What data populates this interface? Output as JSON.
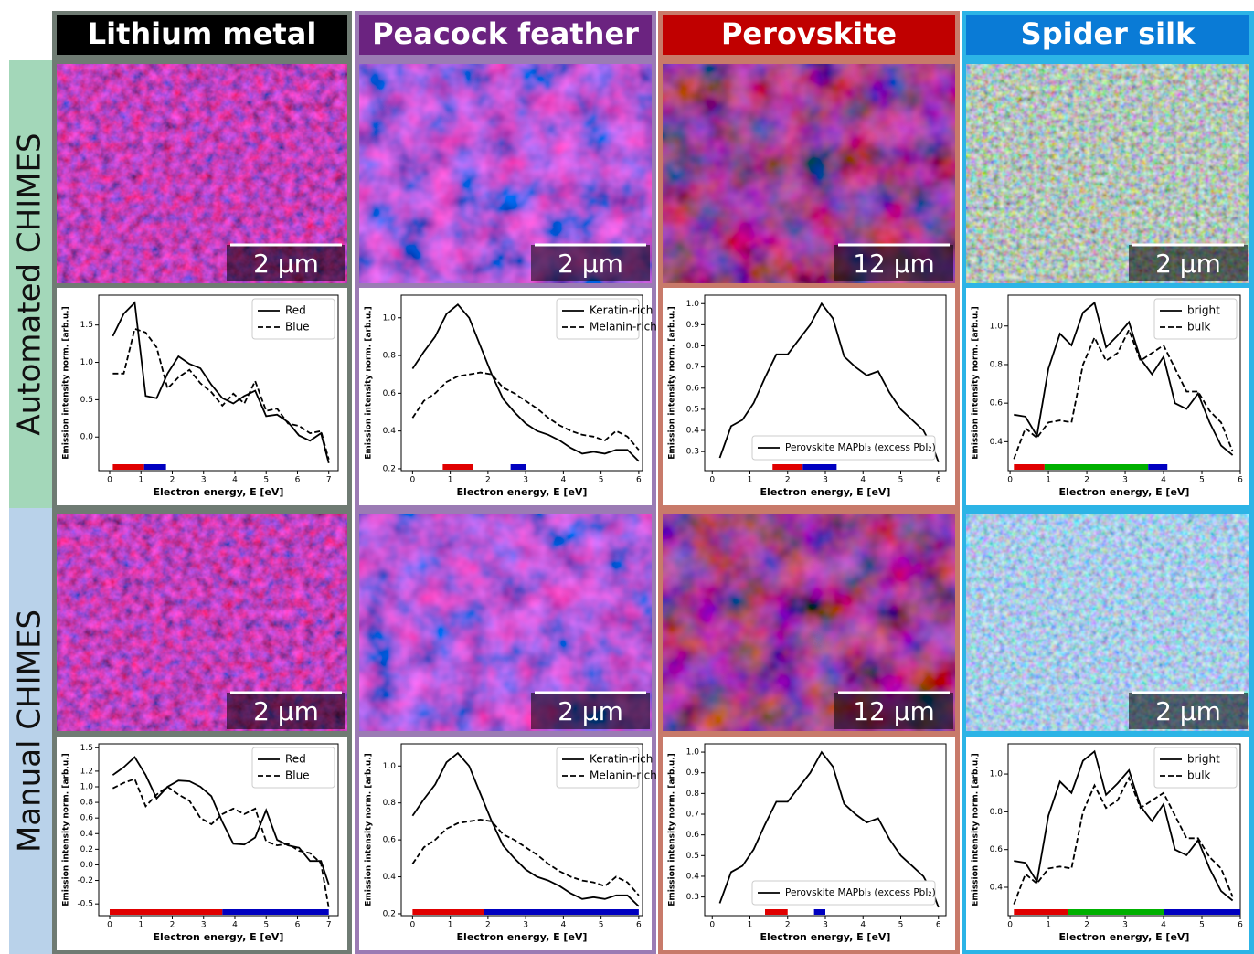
{
  "columns": [
    {
      "title": "Lithium metal"
    },
    {
      "title": "Peacock feather"
    },
    {
      "title": "Perovskite"
    },
    {
      "title": "Spider silk"
    }
  ],
  "rows": [
    "Automated CHIMES",
    "Manual CHIMES"
  ],
  "scale_bars": [
    [
      "2 µm",
      "2 µm",
      "12 µm",
      "2 µm"
    ],
    [
      "2 µm",
      "2 µm",
      "12 µm",
      "2 µm"
    ]
  ],
  "chart_data": [
    {
      "type": "line",
      "x_label": "Electron energy, E [eV]",
      "y_label": "Emission intensity norm. [arb.u.]",
      "legend": "upper right",
      "x": [
        0.1,
        0.45,
        0.8,
        1.15,
        1.5,
        1.85,
        2.2,
        2.55,
        2.9,
        3.25,
        3.6,
        3.95,
        4.3,
        4.65,
        5.0,
        5.35,
        5.7,
        6.05,
        6.4,
        6.75,
        7.0
      ],
      "series": [
        {
          "name": "Red",
          "color": "#000000",
          "linestyle": "solid",
          "values": [
            1.35,
            1.65,
            1.8,
            0.55,
            0.52,
            0.85,
            1.08,
            0.98,
            0.92,
            0.7,
            0.52,
            0.45,
            0.55,
            0.62,
            0.28,
            0.3,
            0.2,
            0.02,
            -0.05,
            0.05,
            -0.35
          ]
        },
        {
          "name": "Blue",
          "color": "#000000",
          "linestyle": "dashed",
          "values": [
            0.85,
            0.85,
            1.45,
            1.4,
            1.2,
            0.65,
            0.8,
            0.9,
            0.72,
            0.6,
            0.42,
            0.58,
            0.45,
            0.75,
            0.35,
            0.38,
            0.18,
            0.15,
            0.05,
            0.08,
            -0.3
          ]
        }
      ],
      "bands": [
        {
          "color": "#e00000",
          "range": [
            0.1,
            1.1
          ]
        },
        {
          "color": "#0000c0",
          "range": [
            1.1,
            1.8
          ]
        }
      ],
      "xlim": [
        -0.35,
        7.3
      ],
      "xticks": [
        0,
        1,
        2,
        3,
        4,
        5,
        6,
        7
      ],
      "ylim": [
        -0.45,
        1.9
      ],
      "yticks": [
        {
          "value": 0,
          "label": "0.0"
        },
        0.5,
        {
          "value": 1,
          "label": "1.0"
        },
        1.5
      ]
    },
    {
      "type": "line",
      "x_label": "Electron energy, E [eV]",
      "y_label": "Emission intensity norm. [arb.u.]",
      "legend": "upper right",
      "x": [
        0,
        0.3,
        0.6,
        0.9,
        1.2,
        1.5,
        1.8,
        2.1,
        2.4,
        2.7,
        3.0,
        3.3,
        3.6,
        3.9,
        4.2,
        4.5,
        4.8,
        5.1,
        5.4,
        5.7,
        6.0
      ],
      "series": [
        {
          "name": "Keratin-rich",
          "color": "#000000",
          "linestyle": "solid",
          "values": [
            0.73,
            0.82,
            0.9,
            1.02,
            1.07,
            1.0,
            0.85,
            0.7,
            0.57,
            0.5,
            0.44,
            0.4,
            0.38,
            0.35,
            0.31,
            0.28,
            0.29,
            0.28,
            0.3,
            0.3,
            0.24
          ]
        },
        {
          "name": "Melanin-rich",
          "color": "#000000",
          "linestyle": "dashed",
          "values": [
            0.47,
            0.56,
            0.6,
            0.66,
            0.69,
            0.7,
            0.71,
            0.7,
            0.63,
            0.6,
            0.56,
            0.52,
            0.47,
            0.43,
            0.4,
            0.38,
            0.37,
            0.35,
            0.4,
            0.37,
            0.3
          ]
        }
      ],
      "bands": [
        {
          "color": "#e00000",
          "range": [
            0.8,
            1.6
          ]
        },
        {
          "color": "#0000c0",
          "range": [
            2.6,
            3.0
          ]
        }
      ],
      "xlim": [
        -0.3,
        6.1
      ],
      "xticks": [
        0,
        1,
        2,
        3,
        4,
        5,
        6
      ],
      "ylim": [
        0.19,
        1.12
      ],
      "yticks": [
        0.2,
        0.4,
        0.6,
        0.8,
        {
          "value": 1,
          "label": "1.0"
        }
      ]
    },
    {
      "type": "line",
      "x_label": "Electron energy, E [eV]",
      "y_label": "Emission intensity norm. [arb.u.]",
      "legend": "lower center",
      "x": [
        0.2,
        0.5,
        0.8,
        1.1,
        1.4,
        1.7,
        2.0,
        2.3,
        2.6,
        2.9,
        3.2,
        3.5,
        3.8,
        4.1,
        4.4,
        4.7,
        5.0,
        5.3,
        5.6,
        5.9,
        6.0
      ],
      "series": [
        {
          "name": "Perovskite MAPbI₃ (excess PbI₂)",
          "color": "#000000",
          "linestyle": "solid",
          "values": [
            0.27,
            0.42,
            0.45,
            0.53,
            0.65,
            0.76,
            0.76,
            0.83,
            0.9,
            1.0,
            0.93,
            0.75,
            0.7,
            0.66,
            0.68,
            0.58,
            0.5,
            0.45,
            0.4,
            0.3,
            0.25
          ]
        }
      ],
      "bands": [
        {
          "color": "#e00000",
          "range": [
            1.6,
            2.4
          ]
        },
        {
          "color": "#0000c0",
          "range": [
            2.4,
            3.3
          ]
        }
      ],
      "xlim": [
        -0.2,
        6.2
      ],
      "xticks": [
        0,
        1,
        2,
        3,
        4,
        5,
        6
      ],
      "ylim": [
        0.21,
        1.04
      ],
      "yticks": [
        0.3,
        0.4,
        0.5,
        0.6,
        0.7,
        0.8,
        0.9,
        {
          "value": 1,
          "label": "1.0"
        }
      ]
    },
    {
      "type": "line",
      "x_label": "Electron energy, E [eV]",
      "y_label": "Emission intensity norm. [arb.u.]",
      "legend": "upper right",
      "x": [
        0.1,
        0.4,
        0.7,
        1.0,
        1.3,
        1.6,
        1.9,
        2.2,
        2.5,
        2.8,
        3.1,
        3.4,
        3.7,
        4.0,
        4.3,
        4.6,
        4.9,
        5.2,
        5.5,
        5.8
      ],
      "series": [
        {
          "name": "bright",
          "color": "#000000",
          "linestyle": "solid",
          "values": [
            0.54,
            0.53,
            0.43,
            0.78,
            0.96,
            0.9,
            1.07,
            1.12,
            0.89,
            0.95,
            1.02,
            0.83,
            0.75,
            0.84,
            0.6,
            0.57,
            0.65,
            0.5,
            0.38,
            0.33
          ]
        },
        {
          "name": "bulk",
          "color": "#000000",
          "linestyle": "dashed",
          "values": [
            0.31,
            0.47,
            0.42,
            0.5,
            0.51,
            0.5,
            0.8,
            0.94,
            0.82,
            0.86,
            0.98,
            0.82,
            0.86,
            0.9,
            0.78,
            0.66,
            0.66,
            0.56,
            0.5,
            0.35
          ]
        }
      ],
      "bands": [
        {
          "color": "#e00000",
          "range": [
            0.1,
            0.9
          ]
        },
        {
          "color": "#00b000",
          "range": [
            0.9,
            3.6
          ]
        },
        {
          "color": "#0000c0",
          "range": [
            3.6,
            4.1
          ]
        }
      ],
      "xlim": [
        -0.05,
        6.0
      ],
      "xticks": [
        0,
        1,
        2,
        3,
        4,
        5,
        6
      ],
      "ylim": [
        0.25,
        1.16
      ],
      "yticks": [
        0.4,
        0.6,
        0.8,
        {
          "value": 1,
          "label": "1.0"
        }
      ]
    },
    {
      "type": "line",
      "x_label": "Electron energy, E [eV]",
      "y_label": "Emission intensity norm. [arb.u.]",
      "legend": "upper right",
      "x": [
        0.1,
        0.45,
        0.8,
        1.15,
        1.5,
        1.85,
        2.2,
        2.55,
        2.9,
        3.25,
        3.6,
        3.95,
        4.3,
        4.65,
        5.0,
        5.35,
        5.7,
        6.05,
        6.4,
        6.75,
        7.0
      ],
      "series": [
        {
          "name": "Red",
          "color": "#000000",
          "linestyle": "solid",
          "values": [
            1.15,
            1.25,
            1.38,
            1.15,
            0.85,
            1.0,
            1.08,
            1.07,
            1.0,
            0.88,
            0.55,
            0.27,
            0.26,
            0.35,
            0.7,
            0.32,
            0.25,
            0.22,
            0.05,
            0.05,
            -0.25
          ]
        },
        {
          "name": "Blue",
          "color": "#000000",
          "linestyle": "dashed",
          "values": [
            0.98,
            1.05,
            1.1,
            0.75,
            0.9,
            1.0,
            0.9,
            0.82,
            0.6,
            0.52,
            0.65,
            0.72,
            0.65,
            0.72,
            0.3,
            0.25,
            0.27,
            0.18,
            0.15,
            0.02,
            -0.55
          ]
        }
      ],
      "bands": [
        {
          "color": "#e00000",
          "range": [
            0,
            3.6
          ]
        },
        {
          "color": "#0000c0",
          "range": [
            3.6,
            7.0
          ]
        }
      ],
      "xlim": [
        -0.35,
        7.3
      ],
      "xticks": [
        0,
        1,
        2,
        3,
        4,
        5,
        6,
        7
      ],
      "ylim": [
        -0.65,
        1.55
      ],
      "yticks": [
        -0.5,
        -0.2,
        {
          "value": 0,
          "label": "0.0"
        },
        0.2,
        0.4,
        0.6,
        0.8,
        {
          "value": 1,
          "label": "1.0"
        },
        1.2,
        1.5
      ]
    },
    {
      "type": "line",
      "x_label": "Electron energy, E [eV]",
      "y_label": "Emission intensity norm. [arb.u.]",
      "legend": "upper right",
      "x": [
        0,
        0.3,
        0.6,
        0.9,
        1.2,
        1.5,
        1.8,
        2.1,
        2.4,
        2.7,
        3.0,
        3.3,
        3.6,
        3.9,
        4.2,
        4.5,
        4.8,
        5.1,
        5.4,
        5.7,
        6.0
      ],
      "series": [
        {
          "name": "Keratin-rich",
          "color": "#000000",
          "linestyle": "solid",
          "values": [
            0.73,
            0.82,
            0.9,
            1.02,
            1.07,
            1.0,
            0.85,
            0.7,
            0.57,
            0.5,
            0.44,
            0.4,
            0.38,
            0.35,
            0.31,
            0.28,
            0.29,
            0.28,
            0.3,
            0.3,
            0.24
          ]
        },
        {
          "name": "Melanin-rich",
          "color": "#000000",
          "linestyle": "dashed",
          "values": [
            0.47,
            0.56,
            0.6,
            0.66,
            0.69,
            0.7,
            0.71,
            0.7,
            0.63,
            0.6,
            0.56,
            0.52,
            0.47,
            0.43,
            0.4,
            0.38,
            0.37,
            0.35,
            0.4,
            0.37,
            0.3
          ]
        }
      ],
      "bands": [
        {
          "color": "#e00000",
          "range": [
            0,
            1.9
          ]
        },
        {
          "color": "#0000c0",
          "range": [
            1.9,
            6.0
          ]
        }
      ],
      "xlim": [
        -0.3,
        6.1
      ],
      "xticks": [
        0,
        1,
        2,
        3,
        4,
        5,
        6
      ],
      "ylim": [
        0.19,
        1.12
      ],
      "yticks": [
        0.2,
        0.4,
        0.6,
        0.8,
        {
          "value": 1,
          "label": "1.0"
        }
      ]
    },
    {
      "type": "line",
      "x_label": "Electron energy, E [eV]",
      "y_label": "Emission intensity norm. [arb.u.]",
      "legend": "lower center",
      "x": [
        0.2,
        0.5,
        0.8,
        1.1,
        1.4,
        1.7,
        2.0,
        2.3,
        2.6,
        2.9,
        3.2,
        3.5,
        3.8,
        4.1,
        4.4,
        4.7,
        5.0,
        5.3,
        5.6,
        5.9,
        6.0
      ],
      "series": [
        {
          "name": "Perovskite MAPbI₃ (excess PbI₂)",
          "color": "#000000",
          "linestyle": "solid",
          "values": [
            0.27,
            0.42,
            0.45,
            0.53,
            0.65,
            0.76,
            0.76,
            0.83,
            0.9,
            1.0,
            0.93,
            0.75,
            0.7,
            0.66,
            0.68,
            0.58,
            0.5,
            0.45,
            0.4,
            0.3,
            0.25
          ]
        }
      ],
      "bands": [
        {
          "color": "#e00000",
          "range": [
            1.4,
            2.0
          ]
        },
        {
          "color": "#0000c0",
          "range": [
            2.7,
            3.0
          ]
        }
      ],
      "xlim": [
        -0.2,
        6.2
      ],
      "xticks": [
        0,
        1,
        2,
        3,
        4,
        5,
        6
      ],
      "ylim": [
        0.21,
        1.04
      ],
      "yticks": [
        0.3,
        0.4,
        0.5,
        0.6,
        0.7,
        0.8,
        0.9,
        {
          "value": 1,
          "label": "1.0"
        }
      ]
    },
    {
      "type": "line",
      "x_label": "Electron energy, E [eV]",
      "y_label": "Emission intensity norm. [arb.u.]",
      "legend": "upper right",
      "x": [
        0.1,
        0.4,
        0.7,
        1.0,
        1.3,
        1.6,
        1.9,
        2.2,
        2.5,
        2.8,
        3.1,
        3.4,
        3.7,
        4.0,
        4.3,
        4.6,
        4.9,
        5.2,
        5.5,
        5.8
      ],
      "series": [
        {
          "name": "bright",
          "color": "#000000",
          "linestyle": "solid",
          "values": [
            0.54,
            0.53,
            0.43,
            0.78,
            0.96,
            0.9,
            1.07,
            1.12,
            0.89,
            0.95,
            1.02,
            0.83,
            0.75,
            0.84,
            0.6,
            0.57,
            0.65,
            0.5,
            0.38,
            0.33
          ]
        },
        {
          "name": "bulk",
          "color": "#000000",
          "linestyle": "dashed",
          "values": [
            0.31,
            0.47,
            0.42,
            0.5,
            0.51,
            0.5,
            0.8,
            0.94,
            0.82,
            0.86,
            0.98,
            0.82,
            0.86,
            0.9,
            0.78,
            0.66,
            0.66,
            0.56,
            0.5,
            0.35
          ]
        }
      ],
      "bands": [
        {
          "color": "#e00000",
          "range": [
            0.1,
            1.5
          ]
        },
        {
          "color": "#00b000",
          "range": [
            1.5,
            4.0
          ]
        },
        {
          "color": "#0000c0",
          "range": [
            4.0,
            6.0
          ]
        }
      ],
      "xlim": [
        -0.05,
        6.0
      ],
      "xticks": [
        0,
        1,
        2,
        3,
        4,
        5,
        6
      ],
      "ylim": [
        0.25,
        1.16
      ],
      "yticks": [
        0.4,
        0.6,
        0.8,
        {
          "value": 1,
          "label": "1.0"
        }
      ]
    }
  ]
}
